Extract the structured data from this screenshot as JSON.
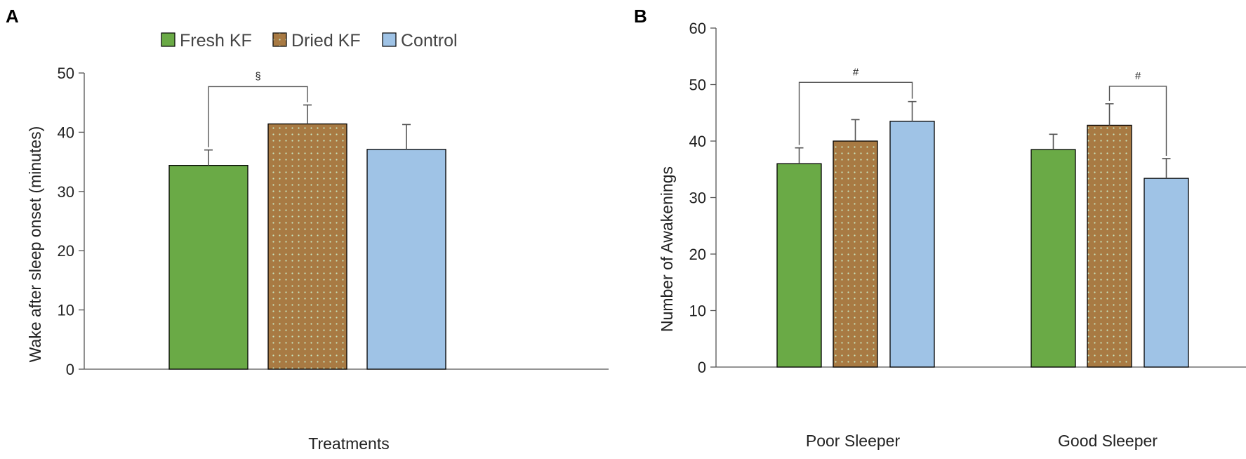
{
  "colors": {
    "fresh_kf": "#6aaa46",
    "dried_kf": "#a87a43",
    "control": "#9fc3e6",
    "dots": "#c8e6c0"
  },
  "legend": [
    "Fresh KF",
    "Dried KF",
    "Control"
  ],
  "chart_data": [
    {
      "panel": "A",
      "type": "bar",
      "title": "",
      "xlabel": "Treatments",
      "ylabel": "Wake after sleep onset (minutes)",
      "ylim": [
        0,
        50
      ],
      "yticks": [
        0,
        10,
        20,
        30,
        40,
        50
      ],
      "categories": [
        "Treatments"
      ],
      "series": [
        {
          "name": "Fresh KF",
          "values": [
            34.4
          ],
          "errors": [
            2.6
          ]
        },
        {
          "name": "Dried KF",
          "values": [
            41.4
          ],
          "errors": [
            3.2
          ]
        },
        {
          "name": "Control",
          "values": [
            37.1
          ],
          "errors": [
            4.2
          ]
        }
      ],
      "annotations": [
        {
          "symbol": "§",
          "from_series": 0,
          "to_series": 1,
          "category": 0,
          "level": 47.7
        }
      ]
    },
    {
      "panel": "B",
      "type": "bar",
      "title": "",
      "xlabel": "",
      "ylabel": "Number of Awakenings",
      "ylim": [
        0,
        60
      ],
      "yticks": [
        0,
        10,
        20,
        30,
        40,
        50,
        60
      ],
      "categories": [
        "Poor Sleeper",
        "Good Sleeper"
      ],
      "series": [
        {
          "name": "Fresh KF",
          "values": [
            36.0,
            38.5
          ],
          "errors": [
            2.8,
            2.7
          ]
        },
        {
          "name": "Dried KF",
          "values": [
            40.0,
            42.8
          ],
          "errors": [
            3.8,
            3.8
          ]
        },
        {
          "name": "Control",
          "values": [
            43.5,
            33.4
          ],
          "errors": [
            3.5,
            3.5
          ]
        }
      ],
      "annotations": [
        {
          "symbol": "#",
          "from_series": 0,
          "to_series": 2,
          "category": 0,
          "level": 50.4
        },
        {
          "symbol": "#",
          "from_series": 1,
          "to_series": 2,
          "category": 1,
          "level": 49.7
        }
      ]
    }
  ]
}
